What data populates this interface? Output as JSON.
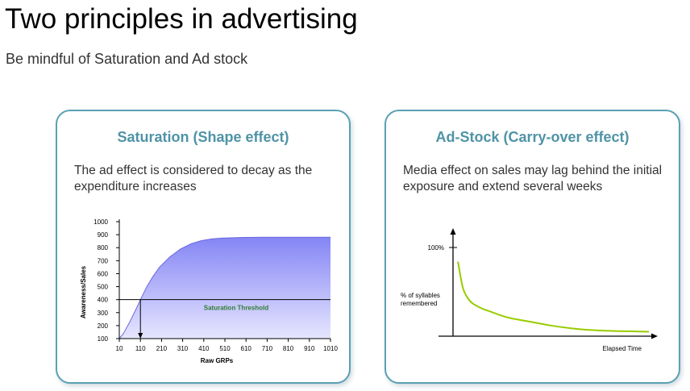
{
  "slide": {
    "title": "Two principles in advertising",
    "subtitle": "Be mindful of Saturation and Ad stock"
  },
  "cards": {
    "saturation": {
      "title": "Saturation (Shape effect)",
      "description": "The ad effect is considered to decay as the expenditure increases"
    },
    "adstock": {
      "title": "Ad-Stock (Carry-over effect)",
      "description": "Media effect on sales may lag behind the initial exposure and extend several weeks"
    }
  },
  "colors": {
    "accent": "#4f93a6",
    "card_border": "#5aa0b4",
    "saturation_fill_top": "#8585f5",
    "saturation_fill_bottom": "#e6e6ff",
    "threshold_label": "#2e7d32",
    "decay_curve": "#99cc00"
  },
  "chart_data": [
    {
      "type": "area",
      "xlabel": "Raw GRPs",
      "ylabel": "Awareness/Sales",
      "xlim": [
        10,
        1010
      ],
      "ylim": [
        100,
        1000
      ],
      "x_ticks": [
        10,
        110,
        210,
        310,
        410,
        510,
        610,
        710,
        810,
        910,
        1010
      ],
      "y_ticks": [
        100,
        200,
        300,
        400,
        500,
        600,
        700,
        800,
        900,
        1000
      ],
      "x_tick_labels": [
        "10",
        "110",
        "210",
        "310",
        "410",
        "510",
        "610",
        "710",
        "810",
        "910",
        "1010"
      ],
      "y_tick_labels": [
        "100",
        "200",
        "300",
        "400",
        "500",
        "600",
        "700",
        "800",
        "900",
        "1000"
      ],
      "x": [
        10,
        30,
        60,
        90,
        110,
        140,
        170,
        200,
        250,
        300,
        350,
        400,
        450,
        500,
        600,
        700,
        800,
        900,
        1010
      ],
      "y": [
        100,
        140,
        230,
        330,
        400,
        500,
        580,
        650,
        730,
        790,
        830,
        855,
        868,
        874,
        879,
        880,
        880,
        880,
        880
      ],
      "threshold": {
        "label": "Saturation Threshold",
        "value": 400,
        "x": 110
      },
      "grid": false
    },
    {
      "type": "line",
      "xlabel": "Elapsed Time",
      "ylabel": "% of syllables remembered",
      "y_marker_label": "100%",
      "y_marker_value": 100,
      "xlim": [
        0,
        20
      ],
      "ylim": [
        0,
        120
      ],
      "x": [
        0.5,
        1,
        1.5,
        2,
        3,
        4,
        5,
        6,
        8,
        10,
        12,
        14,
        16,
        18,
        20
      ],
      "y": [
        84,
        55,
        43,
        37,
        31,
        27,
        23,
        20,
        16,
        12,
        9,
        7,
        6,
        5.5,
        5
      ],
      "grid": false
    }
  ]
}
